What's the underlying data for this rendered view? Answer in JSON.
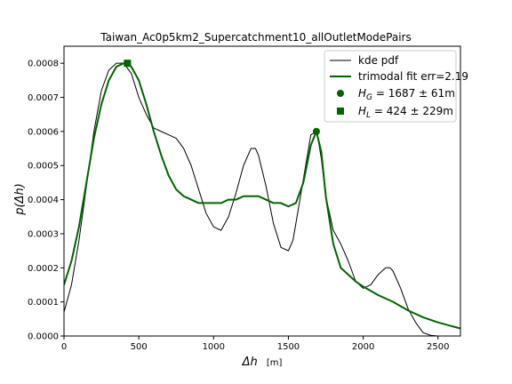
{
  "chart_data": {
    "type": "line",
    "title": "Taiwan_Ac0p5km2_Supercatchment10_allOutletModePairs",
    "xlabel_main": "Δh",
    "xlabel_unit": "[m]",
    "ylabel": "p(Δh)",
    "xlim": [
      0,
      2650
    ],
    "ylim": [
      0,
      0.00085
    ],
    "x_ticks": [
      0,
      500,
      1000,
      1500,
      2000,
      2500
    ],
    "x_tick_labels": [
      "0",
      "500",
      "1000",
      "1500",
      "2000",
      "2500"
    ],
    "y_ticks": [
      0,
      0.0001,
      0.0002,
      0.0003,
      0.0004,
      0.0005,
      0.0006,
      0.0007,
      0.0008
    ],
    "y_tick_labels": [
      "0.0000",
      "0.0001",
      "0.0002",
      "0.0003",
      "0.0004",
      "0.0005",
      "0.0006",
      "0.0007",
      "0.0008"
    ],
    "legend_position": "top-right",
    "series": [
      {
        "name": "kde pdf",
        "color": "#000000",
        "x": [
          0,
          50,
          100,
          150,
          200,
          250,
          300,
          350,
          400,
          450,
          500,
          550,
          600,
          650,
          700,
          750,
          800,
          850,
          900,
          950,
          1000,
          1050,
          1100,
          1150,
          1200,
          1250,
          1280,
          1300,
          1350,
          1400,
          1450,
          1500,
          1530,
          1550,
          1600,
          1650,
          1690,
          1720,
          1750,
          1800,
          1850,
          1900,
          1950,
          2000,
          2050,
          2100,
          2150,
          2180,
          2200,
          2250,
          2300,
          2350,
          2400,
          2450,
          2500,
          2550,
          2600,
          2650
        ],
        "y": [
          7e-05,
          0.00015,
          0.00028,
          0.00044,
          0.0006,
          0.00072,
          0.00078,
          0.0008,
          0.0008,
          0.00077,
          0.0007,
          0.00065,
          0.00061,
          0.0006,
          0.00059,
          0.00058,
          0.00055,
          0.0005,
          0.00043,
          0.00036,
          0.00032,
          0.00031,
          0.00035,
          0.00042,
          0.0005,
          0.00055,
          0.00055,
          0.00053,
          0.00044,
          0.00033,
          0.00026,
          0.00025,
          0.00028,
          0.00033,
          0.00046,
          0.00059,
          0.0006,
          0.00052,
          0.00041,
          0.00031,
          0.00027,
          0.00022,
          0.00016,
          0.00014,
          0.00015,
          0.00018,
          0.0002,
          0.0002,
          0.00019,
          0.00014,
          8e-05,
          4e-05,
          1e-05,
          2e-06,
          0.0,
          0.0,
          0.0,
          0.0
        ]
      },
      {
        "name": "trimodal fit err=2.19",
        "color": "#006400",
        "x": [
          0,
          50,
          100,
          150,
          200,
          250,
          300,
          350,
          400,
          424,
          450,
          500,
          550,
          600,
          650,
          700,
          750,
          800,
          850,
          900,
          950,
          1000,
          1050,
          1100,
          1150,
          1200,
          1250,
          1300,
          1350,
          1400,
          1450,
          1500,
          1550,
          1600,
          1650,
          1687,
          1720,
          1750,
          1800,
          1850,
          1900,
          1950,
          2000,
          2100,
          2200,
          2300,
          2400,
          2500,
          2600,
          2650
        ],
        "y": [
          0.00015,
          0.00022,
          0.00032,
          0.00045,
          0.00058,
          0.00068,
          0.00075,
          0.00079,
          0.0008,
          0.0008,
          0.00079,
          0.00075,
          0.00068,
          0.0006,
          0.00053,
          0.00047,
          0.00043,
          0.00041,
          0.0004,
          0.00039,
          0.00039,
          0.00039,
          0.00039,
          0.0004,
          0.0004,
          0.00041,
          0.00041,
          0.00041,
          0.0004,
          0.00039,
          0.00039,
          0.00038,
          0.00039,
          0.00045,
          0.00056,
          0.0006,
          0.00054,
          0.00041,
          0.00027,
          0.0002,
          0.00018,
          0.00016,
          0.000145,
          0.00012,
          0.0001,
          7.5e-05,
          5.5e-05,
          4e-05,
          2.8e-05,
          2.2e-05
        ]
      }
    ],
    "markers": [
      {
        "name": "H_G",
        "label_prefix": "H",
        "label_sub": "G",
        "label_value": " = 1687 ± 61m",
        "shape": "circle",
        "color": "#006400",
        "x": 1687,
        "y": 0.0006
      },
      {
        "name": "H_L",
        "label_prefix": "H",
        "label_sub": "L",
        "label_value": " = 424 ± 229m",
        "shape": "square",
        "color": "#006400",
        "x": 424,
        "y": 0.0008
      }
    ]
  }
}
